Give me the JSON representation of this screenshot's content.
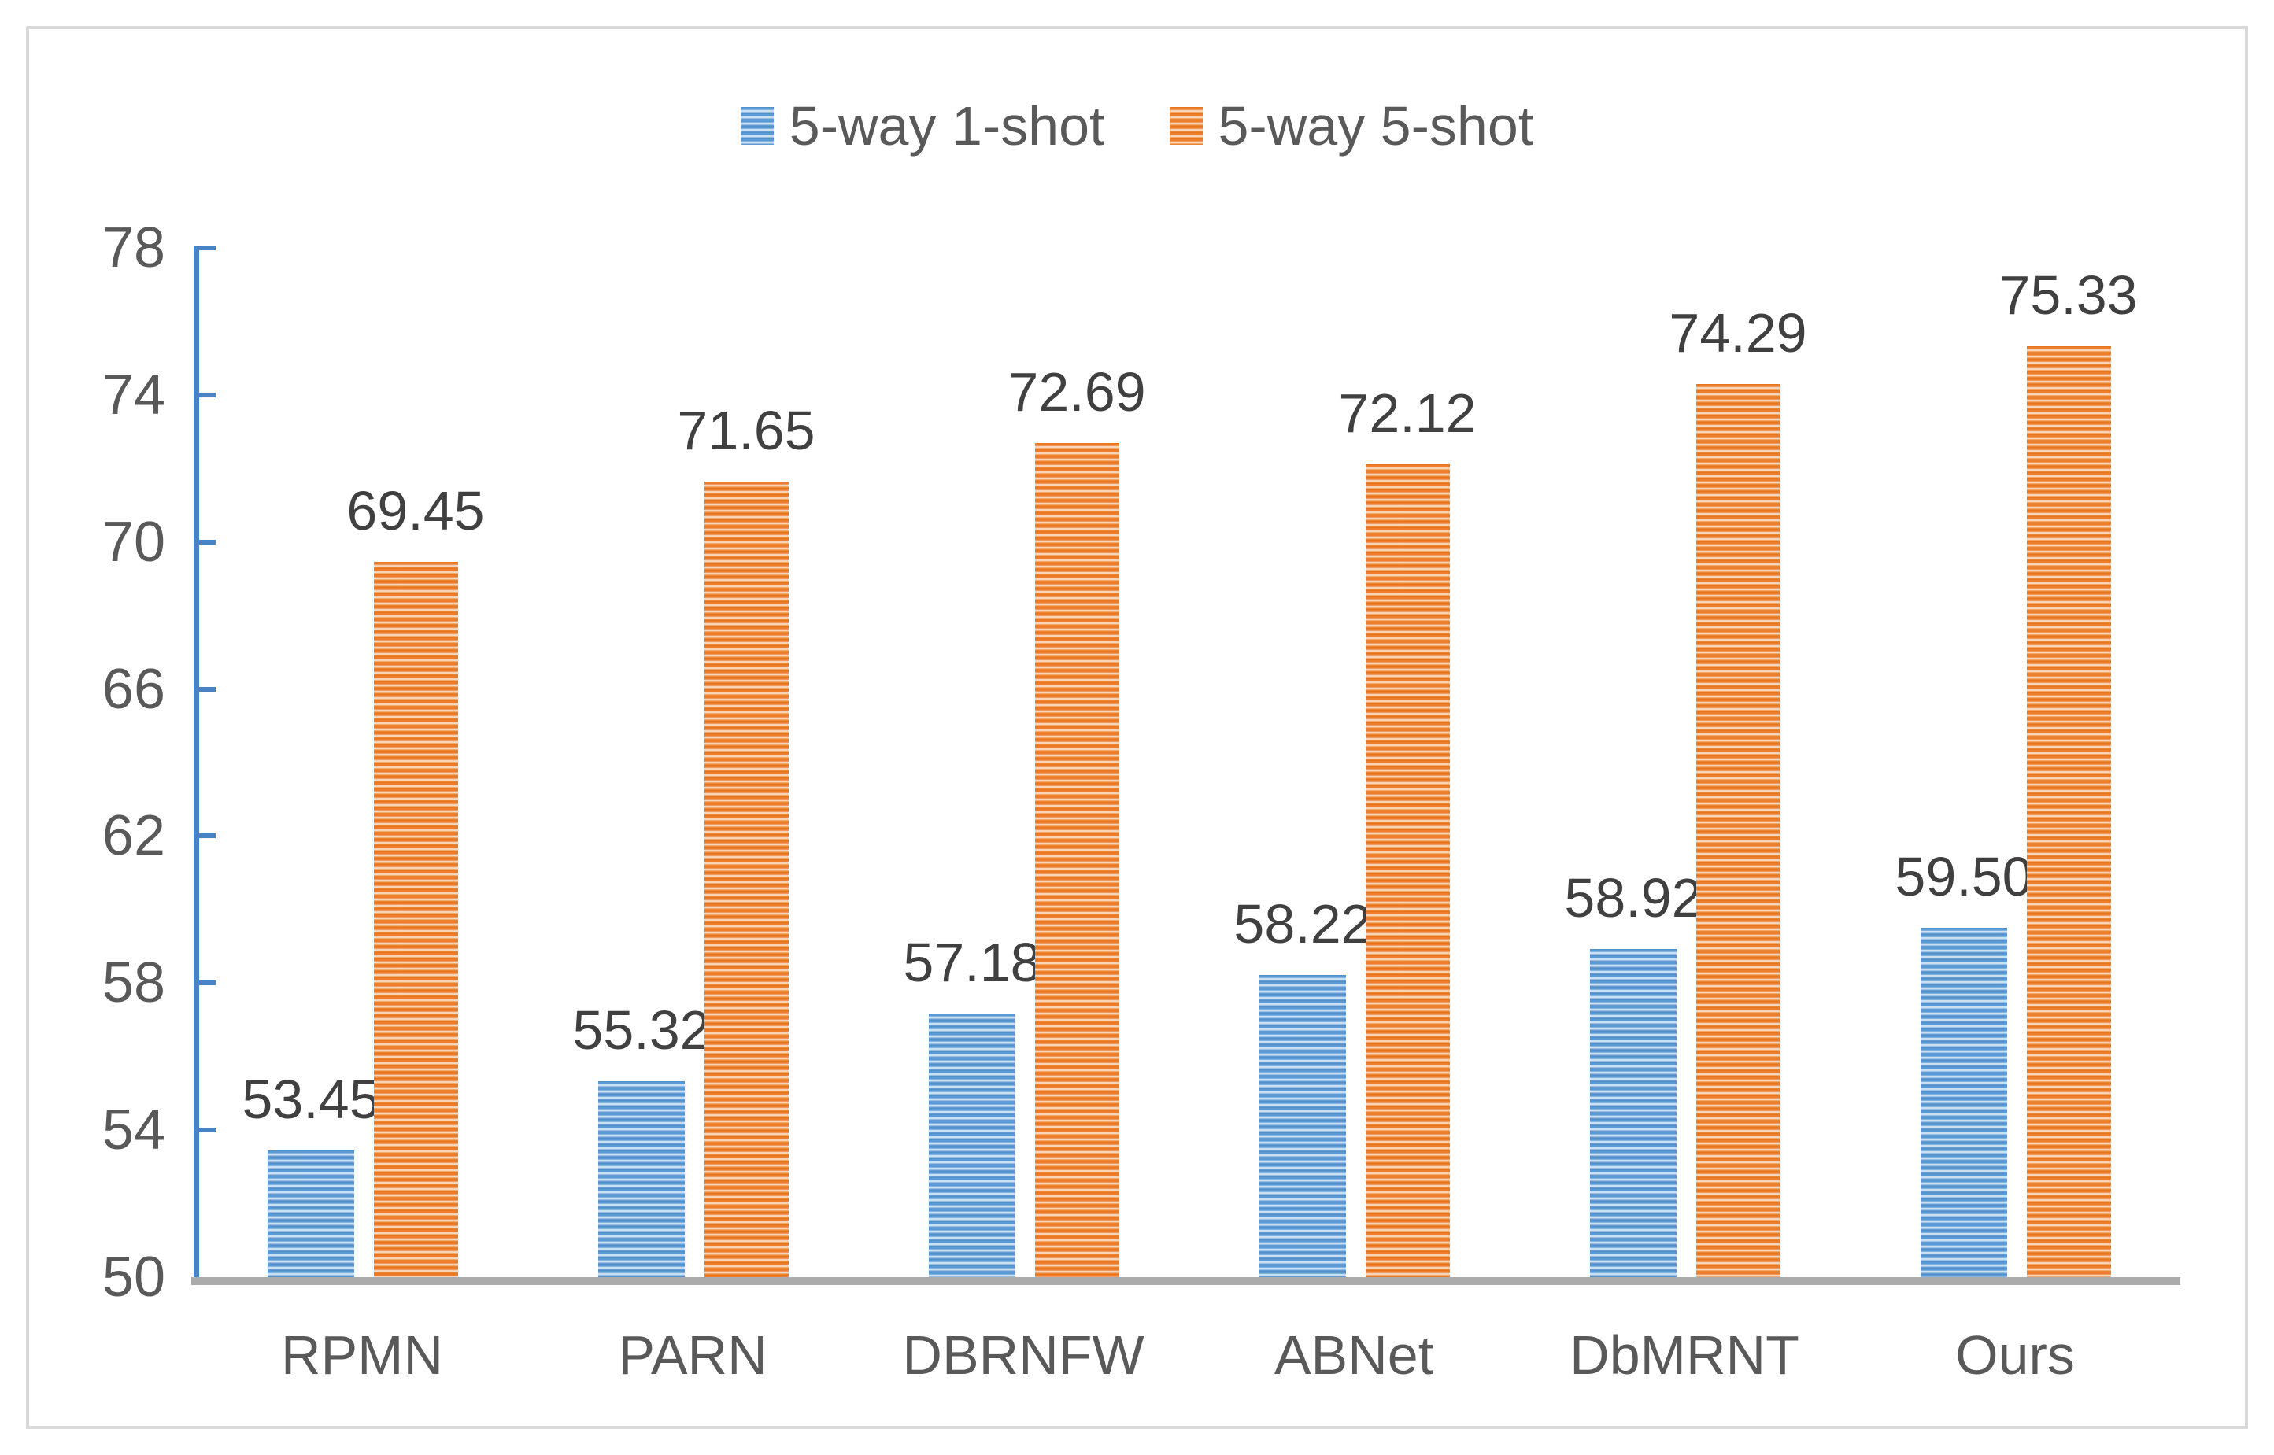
{
  "chart_data": {
    "type": "bar",
    "title": "",
    "categories": [
      "RPMN",
      "PARN",
      "DBRNFW",
      "ABNet",
      "DbMRNT",
      "Ours"
    ],
    "series": [
      {
        "name": "5-way 1-shot",
        "color": "#5B9BD5",
        "values": [
          53.45,
          55.32,
          57.18,
          58.22,
          58.92,
          59.5
        ],
        "labels": [
          "53.45",
          "55.32",
          "57.18",
          "58.22",
          "58.92",
          "59.50"
        ]
      },
      {
        "name": "5-way 5-shot",
        "color": "#ED7D31",
        "values": [
          69.45,
          71.65,
          72.69,
          72.12,
          74.29,
          75.33
        ],
        "labels": [
          "69.45",
          "71.65",
          "72.69",
          "72.12",
          "74.29",
          "75.33"
        ]
      }
    ],
    "xlabel": "",
    "ylabel": "",
    "ylim": [
      50,
      78
    ],
    "yticks": [
      50,
      54,
      58,
      62,
      66,
      70,
      74,
      78
    ],
    "legend_position": "top",
    "grid": false,
    "bar_pattern": "horizontal-stripes",
    "axis_color": "#4A82C6",
    "baseline_color": "#ABABAB",
    "value_label_color": "#404040",
    "tick_label_color": "#595959",
    "frame_border_color": "#D9D9D9"
  }
}
